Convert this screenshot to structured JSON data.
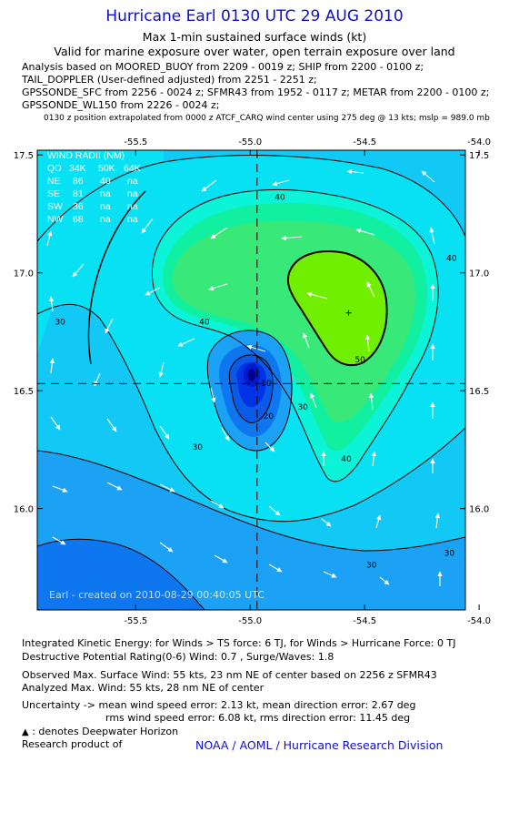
{
  "header": {
    "title": "Hurricane Earl 0130 UTC 29 AUG 2010",
    "subtitle": "Max 1-min sustained surface winds (kt)",
    "valid": "Valid for marine exposure over water, open terrain exposure over land",
    "analysis_lines": [
      "Analysis based on MOORED_BUOY from 2209 - 0019 z; SHIP from 2200 - 0100 z;",
      "TAIL_DOPPLER (User-defined adjusted) from 2251 - 2251 z;",
      "GPSSONDE_SFC from 2256 - 0024 z; SFMR43 from 1952 - 0117 z; METAR from 2200 - 0100 z;",
      "GPSSONDE_WL150 from 2226 - 0024 z;"
    ],
    "position_note": "0130 z position extrapolated from 0000 z ATCF_CARQ wind center using 275 deg @ 13 kts; mslp = 989.0 mb"
  },
  "chart_data": {
    "type": "heatmap",
    "title": "Max 1-min sustained surface winds (kt)",
    "x_ticks": [
      "-55.5",
      "-55.0",
      "-54.5",
      "-54.0"
    ],
    "x_tick_values": [
      -55.5,
      -55.0,
      -54.5,
      -54.0
    ],
    "y_ticks": [
      "17.5",
      "17.0",
      "16.5",
      "16.0"
    ],
    "y_tick_values": [
      17.5,
      17.0,
      16.5,
      16.0
    ],
    "xlim": [
      -55.93,
      -54.06
    ],
    "ylim": [
      15.57,
      17.52
    ],
    "center": {
      "lon": -54.97,
      "lat": 16.53
    },
    "wind_max_marker": {
      "lon": -54.57,
      "lat": 16.83
    },
    "contour_labels": [
      {
        "text": "40",
        "lon": -54.87,
        "lat": 17.31
      },
      {
        "text": "40",
        "lon": -54.12,
        "lat": 17.05
      },
      {
        "text": "40",
        "lon": -55.2,
        "lat": 16.78
      },
      {
        "text": "40",
        "lon": -54.58,
        "lat": 16.2
      },
      {
        "text": "50",
        "lon": -54.52,
        "lat": 16.62
      },
      {
        "text": "30",
        "lon": -55.83,
        "lat": 16.78
      },
      {
        "text": "30",
        "lon": -55.23,
        "lat": 16.25
      },
      {
        "text": "30",
        "lon": -54.77,
        "lat": 16.42
      },
      {
        "text": "30",
        "lon": -54.47,
        "lat": 15.75
      },
      {
        "text": "30",
        "lon": -54.13,
        "lat": 15.8
      },
      {
        "text": "20",
        "lon": -54.92,
        "lat": 16.38
      },
      {
        "text": "10",
        "lon": -54.93,
        "lat": 16.52
      }
    ],
    "contour_levels": [
      10,
      20,
      30,
      40,
      50
    ],
    "colors": [
      "#001cc8",
      "#0033e6",
      "#0a5ae8",
      "#0e77f0",
      "#1ca2f4",
      "#12c8f4",
      "#08e0f4",
      "#0cf4d8",
      "#10f0a0",
      "#38e878",
      "#48f030",
      "#70f000"
    ],
    "wind_radii": {
      "header": [
        "QD",
        "34K",
        "50K",
        "64K"
      ],
      "title": "WIND RADII (NM)",
      "rows": [
        [
          "NE",
          "86",
          "40",
          "na"
        ],
        [
          "SE",
          "81",
          "na",
          "na"
        ],
        [
          "SW",
          "36",
          "na",
          "na"
        ],
        [
          "NW",
          "68",
          "na",
          "na"
        ]
      ]
    },
    "watermark": "Earl - created on 2010-08-29 00:40:05 UTC"
  },
  "footer": {
    "ike": "Integrated Kinetic Energy:  for Winds > TS force: 6 TJ,  for Winds > Hurricane Force: 0 TJ",
    "dpr": "Destructive Potential Rating(0-6)   Wind: 0.7 , Surge/Waves: 1.8",
    "observed": "Observed Max. Surface Wind: 55 kts, 23 nm NE of center based on 2256 z SFMR43",
    "analyzed": "Analyzed Max. Wind: 55 kts, 28 nm NE of center",
    "uncertainty1": "Uncertainty -> mean wind speed error: 2.13 kt,   mean direction error: 2.67 deg",
    "uncertainty2": "rms wind speed error: 6.08 kt,   rms direction error: 11.45 deg",
    "legend": ": denotes Deepwater Horizon",
    "research": "Research product of",
    "credit": "NOAA / AOML / Hurricane Research Division"
  }
}
